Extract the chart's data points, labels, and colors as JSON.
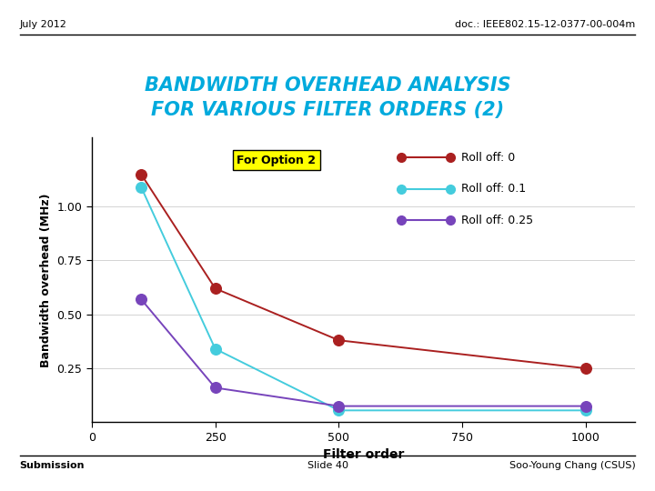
{
  "title_line1": "BANDWIDTH OVERHEAD ANALYSIS",
  "title_line2": "FOR VARIOUS FILTER ORDERS (2)",
  "title_color": "#00AADD",
  "header_left": "July 2012",
  "header_right": "doc.: IEEE802.15-12-0377-00-004m",
  "footer_left": "Submission",
  "footer_center": "Slide 40",
  "footer_right": "Soo-Young Chang (CSUS)",
  "xlabel": "Filter order",
  "ylabel": "Bandwidth overhead (MHz)",
  "annotation": "For Option 2",
  "xlim": [
    0,
    1100
  ],
  "ylim": [
    0,
    1.32
  ],
  "xticks": [
    0,
    250,
    500,
    750,
    1000
  ],
  "yticks": [
    0.25,
    0.5,
    0.75,
    1.0
  ],
  "series": [
    {
      "label": "Roll off: 0",
      "color": "#AA2020",
      "x": [
        100,
        250,
        500,
        1000
      ],
      "y": [
        1.15,
        0.62,
        0.38,
        0.25
      ]
    },
    {
      "label": "Roll off: 0.1",
      "color": "#44CCDD",
      "x": [
        100,
        250,
        500,
        1000
      ],
      "y": [
        1.09,
        0.34,
        0.055,
        0.055
      ]
    },
    {
      "label": "Roll off: 0.25",
      "color": "#7744BB",
      "x": [
        100,
        250,
        500,
        1000
      ],
      "y": [
        0.57,
        0.16,
        0.075,
        0.075
      ]
    }
  ]
}
